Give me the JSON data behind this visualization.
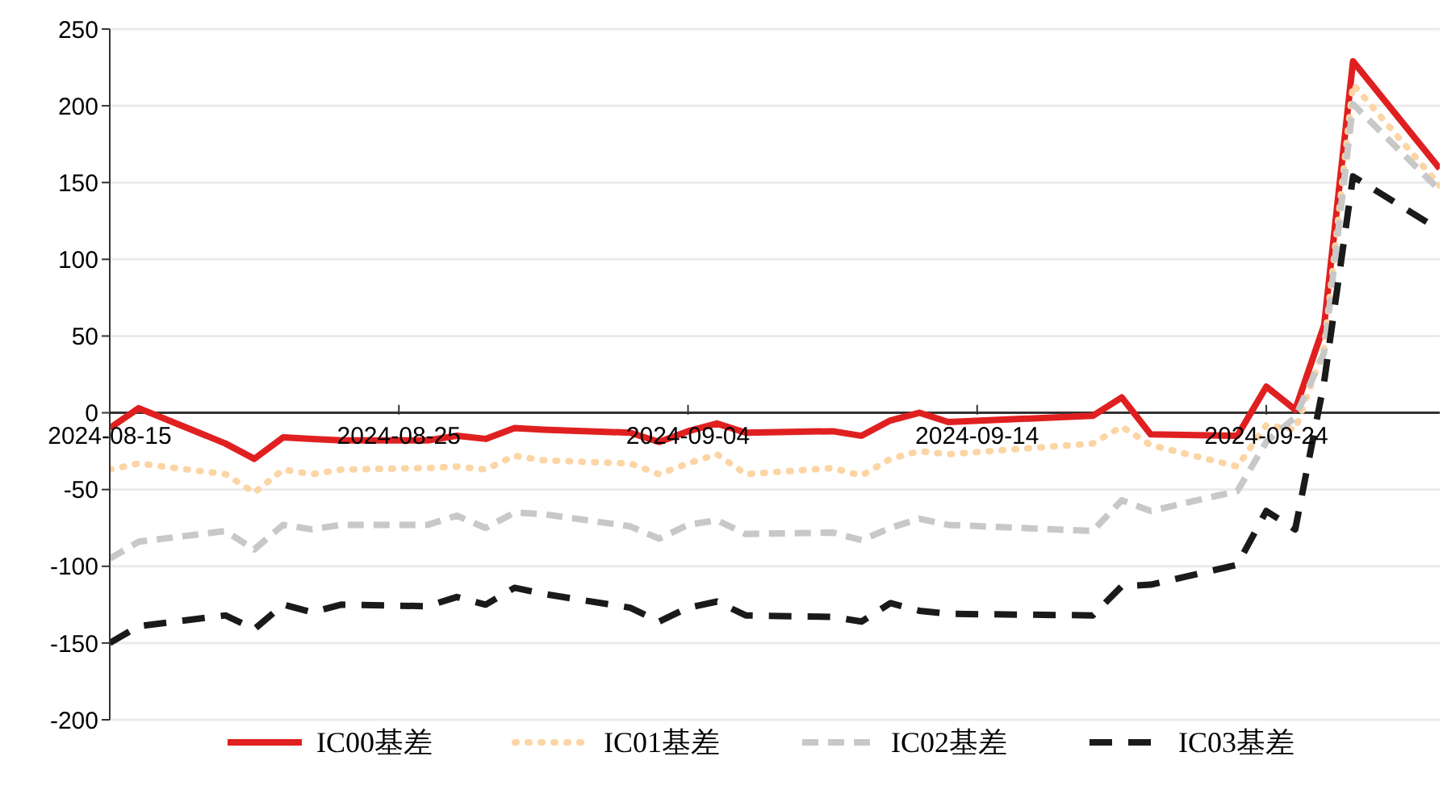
{
  "chart_data": {
    "type": "line",
    "x": [
      "2024-08-15",
      "2024-08-16",
      "2024-08-19",
      "2024-08-20",
      "2024-08-21",
      "2024-08-22",
      "2024-08-23",
      "2024-08-26",
      "2024-08-27",
      "2024-08-28",
      "2024-08-29",
      "2024-08-30",
      "2024-09-02",
      "2024-09-03",
      "2024-09-04",
      "2024-09-05",
      "2024-09-06",
      "2024-09-09",
      "2024-09-10",
      "2024-09-11",
      "2024-09-12",
      "2024-09-13",
      "2024-09-18",
      "2024-09-19",
      "2024-09-20",
      "2024-09-23",
      "2024-09-24",
      "2024-09-25",
      "2024-09-26",
      "2024-09-27",
      "2024-09-30"
    ],
    "series": [
      {
        "name": "IC00基差",
        "color": "#e02020",
        "line_style": "solid",
        "values": [
          -10,
          3,
          -20,
          -30,
          -16,
          -17,
          -18,
          -18,
          -15,
          -17,
          -10,
          -11,
          -13,
          -19,
          -12,
          -7,
          -13,
          -12,
          -15,
          -5,
          0,
          -6,
          -2,
          10,
          -14,
          -15,
          17,
          2,
          57,
          229,
          159
        ]
      },
      {
        "name": "IC01基差",
        "color": "#fcd5a5",
        "line_style": "dotted",
        "values": [
          -37,
          -33,
          -40,
          -52,
          -37,
          -40,
          -37,
          -36,
          -35,
          -37,
          -28,
          -31,
          -33,
          -40,
          -33,
          -27,
          -40,
          -36,
          -41,
          -30,
          -25,
          -27,
          -20,
          -9,
          -21,
          -35,
          -8,
          -11,
          42,
          214,
          148
        ]
      },
      {
        "name": "IC02基差",
        "color": "#c8c8c8",
        "line_style": "dashed",
        "values": [
          -95,
          -84,
          -77,
          -89,
          -73,
          -76,
          -73,
          -73,
          -67,
          -75,
          -65,
          -66,
          -74,
          -82,
          -73,
          -70,
          -79,
          -78,
          -83,
          -75,
          -69,
          -73,
          -77,
          -57,
          -64,
          -51,
          -19,
          -3,
          39,
          201,
          145
        ]
      },
      {
        "name": "IC03基差",
        "color": "#1a1a1a",
        "line_style": "dashed",
        "values": [
          -150,
          -139,
          -132,
          -141,
          -125,
          -130,
          -125,
          -126,
          -120,
          -125,
          -114,
          -118,
          -127,
          -136,
          -127,
          -123,
          -132,
          -133,
          -136,
          -124,
          -129,
          -131,
          -132,
          -113,
          -112,
          -99,
          -64,
          -76,
          20,
          154,
          119
        ]
      }
    ],
    "xlim": [
      "2024-08-15",
      "2024-09-30"
    ],
    "xticks": [
      "2024-08-15",
      "2024-08-25",
      "2024-09-04",
      "2024-09-14",
      "2024-09-24"
    ],
    "ylim": [
      -200,
      250
    ],
    "yticks": [
      -200,
      -150,
      -100,
      -50,
      0,
      50,
      100,
      150,
      200,
      250
    ],
    "grid": "y",
    "legend": "bottom",
    "marker": "none"
  }
}
